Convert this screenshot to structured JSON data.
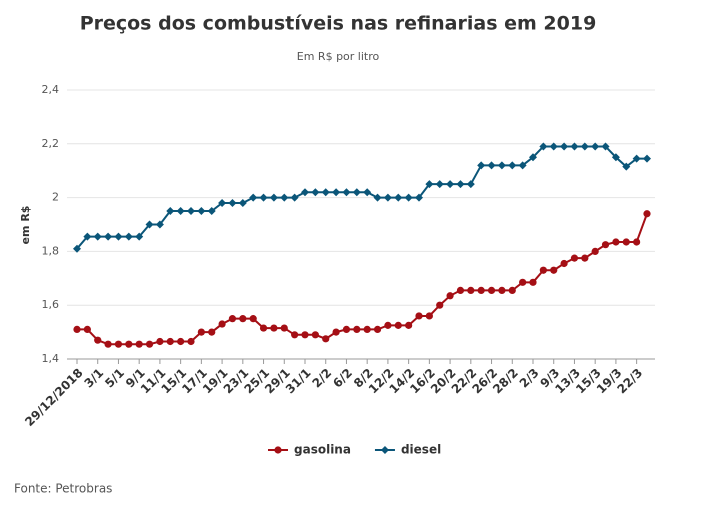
{
  "chart_data": {
    "type": "line",
    "title": "Preços dos combustíveis nas refinarias em 2019",
    "subtitle": "Em R$ por litro",
    "y_label": "em R$",
    "source": "Fonte: Petrobras",
    "categories": [
      "29/12/2018",
      null,
      "3/1",
      null,
      "5/1",
      null,
      "9/1",
      null,
      "11/1",
      null,
      "15/1",
      null,
      "17/1",
      null,
      "19/1",
      null,
      "23/1",
      null,
      "25/1",
      null,
      "29/1",
      null,
      "31/1",
      null,
      "2/2",
      null,
      "6/2",
      null,
      "8/2",
      null,
      "12/2",
      null,
      "14/2",
      null,
      "16/2",
      null,
      "20/2",
      null,
      "22/2",
      null,
      "26/2",
      null,
      "28/2",
      null,
      "2/3",
      null,
      "9/3",
      null,
      "13/3",
      null,
      "15/3",
      null,
      "19/3",
      null,
      "22/3",
      null
    ],
    "series": [
      {
        "name": "gasolina",
        "color": "#a50f15",
        "marker": "circle",
        "values": [
          1.51,
          1.51,
          1.47,
          1.455,
          1.455,
          1.455,
          1.455,
          1.455,
          1.465,
          1.465,
          1.465,
          1.465,
          1.5,
          1.5,
          1.53,
          1.55,
          1.55,
          1.55,
          1.515,
          1.515,
          1.515,
          1.49,
          1.49,
          1.49,
          1.475,
          1.5,
          1.51,
          1.51,
          1.51,
          1.51,
          1.525,
          1.525,
          1.525,
          1.56,
          1.56,
          1.6,
          1.635,
          1.655,
          1.655,
          1.655,
          1.655,
          1.655,
          1.655,
          1.685,
          1.685,
          1.73,
          1.73,
          1.755,
          1.775,
          1.775,
          1.8,
          1.825,
          1.835,
          1.835,
          1.835,
          1.94
        ]
      },
      {
        "name": "diesel",
        "color": "#0b5679",
        "marker": "diamond",
        "values": [
          1.81,
          1.855,
          1.855,
          1.855,
          1.855,
          1.855,
          1.855,
          1.9,
          1.9,
          1.95,
          1.95,
          1.95,
          1.95,
          1.95,
          1.98,
          1.98,
          1.98,
          2.0,
          2.0,
          2.0,
          2.0,
          2.0,
          2.02,
          2.02,
          2.02,
          2.02,
          2.02,
          2.02,
          2.02,
          2.0,
          2.0,
          2.0,
          2.0,
          2.0,
          2.05,
          2.05,
          2.05,
          2.05,
          2.05,
          2.12,
          2.12,
          2.12,
          2.12,
          2.12,
          2.15,
          2.19,
          2.19,
          2.19,
          2.19,
          2.19,
          2.19,
          2.19,
          2.15,
          2.115,
          2.145,
          2.145
        ]
      }
    ],
    "ylim": [
      1.4,
      2.4
    ],
    "yticks": [
      {
        "value": 1.4,
        "label": "1,4"
      },
      {
        "value": 1.6,
        "label": "1,6"
      },
      {
        "value": 1.8,
        "label": "1,8"
      },
      2,
      {
        "value": 2.2,
        "label": "2,2"
      },
      {
        "value": 2.4,
        "label": "2,4"
      }
    ],
    "grid": true,
    "legend": "bottom"
  }
}
